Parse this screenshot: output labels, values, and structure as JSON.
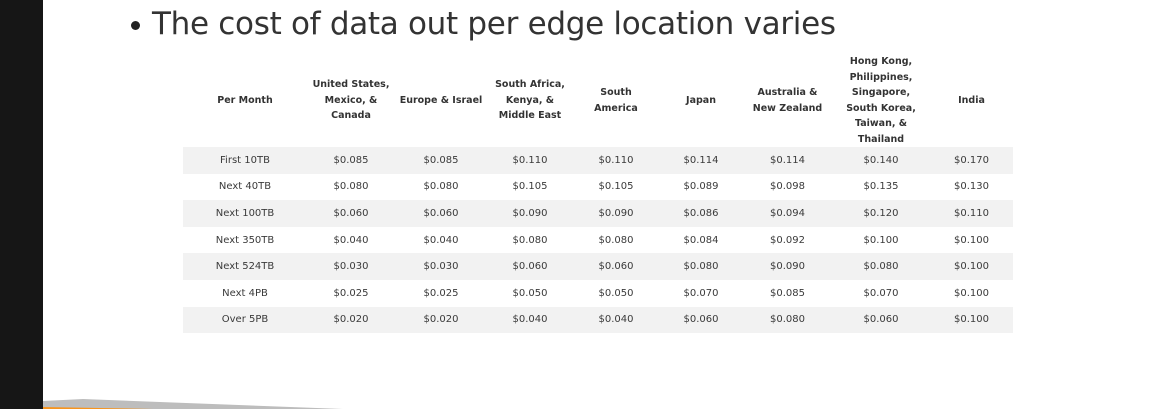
{
  "slide": {
    "title": "The cost of data out per edge location varies"
  },
  "table": {
    "headers": [
      "Per Month",
      "United States, Mexico, & Canada",
      "Europe & Israel",
      "South Africa, Kenya, & Middle East",
      "South America",
      "Japan",
      "Australia & New Zealand",
      "Hong Kong, Philippines, Singapore, South Korea, Taiwan, & Thailand",
      "India"
    ],
    "rows": [
      [
        "First 10TB",
        "$0.085",
        "$0.085",
        "$0.110",
        "$0.110",
        "$0.114",
        "$0.114",
        "$0.140",
        "$0.170"
      ],
      [
        "Next 40TB",
        "$0.080",
        "$0.080",
        "$0.105",
        "$0.105",
        "$0.089",
        "$0.098",
        "$0.135",
        "$0.130"
      ],
      [
        "Next 100TB",
        "$0.060",
        "$0.060",
        "$0.090",
        "$0.090",
        "$0.086",
        "$0.094",
        "$0.120",
        "$0.110"
      ],
      [
        "Next 350TB",
        "$0.040",
        "$0.040",
        "$0.080",
        "$0.080",
        "$0.084",
        "$0.092",
        "$0.100",
        "$0.100"
      ],
      [
        "Next 524TB",
        "$0.030",
        "$0.030",
        "$0.060",
        "$0.060",
        "$0.080",
        "$0.090",
        "$0.080",
        "$0.100"
      ],
      [
        "Next 4PB",
        "$0.025",
        "$0.025",
        "$0.050",
        "$0.050",
        "$0.070",
        "$0.085",
        "$0.070",
        "$0.100"
      ],
      [
        "Over 5PB",
        "$0.020",
        "$0.020",
        "$0.040",
        "$0.040",
        "$0.060",
        "$0.080",
        "$0.060",
        "$0.100"
      ]
    ]
  },
  "colors": {
    "left_bar": "#161616",
    "row_stripe": "#f2f2f2",
    "accent_orange": "#f7941d",
    "swoosh_gray": "#bdbdbd"
  }
}
